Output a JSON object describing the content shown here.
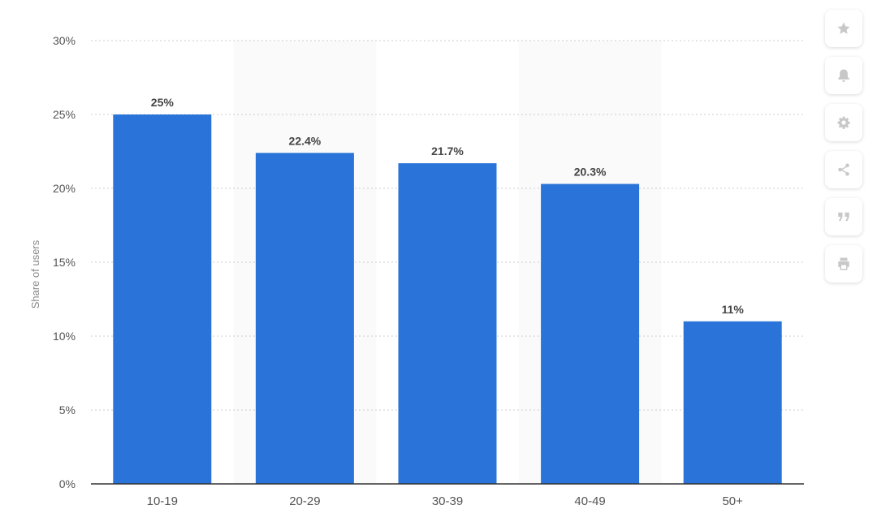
{
  "chart_data": {
    "type": "bar",
    "categories": [
      "10-19",
      "20-29",
      "30-39",
      "40-49",
      "50+"
    ],
    "values": [
      25,
      22.4,
      21.7,
      20.3,
      11
    ],
    "data_labels": [
      "25%",
      "22.4%",
      "21.7%",
      "20.3%",
      "11%"
    ],
    "ylabel": "Share of users",
    "ylim": [
      0,
      30
    ],
    "yticks": [
      0,
      5,
      10,
      15,
      20,
      25,
      30
    ],
    "ytick_labels": [
      "0%",
      "5%",
      "10%",
      "15%",
      "20%",
      "25%",
      "30%"
    ],
    "bar_color": "#2a74d9",
    "grid": true,
    "grid_style": "dotted"
  },
  "toolbar": {
    "buttons": [
      {
        "icon": "star-icon"
      },
      {
        "icon": "bell-icon"
      },
      {
        "icon": "gear-icon"
      },
      {
        "icon": "share-icon"
      },
      {
        "icon": "quote-icon"
      },
      {
        "icon": "print-icon"
      }
    ]
  }
}
